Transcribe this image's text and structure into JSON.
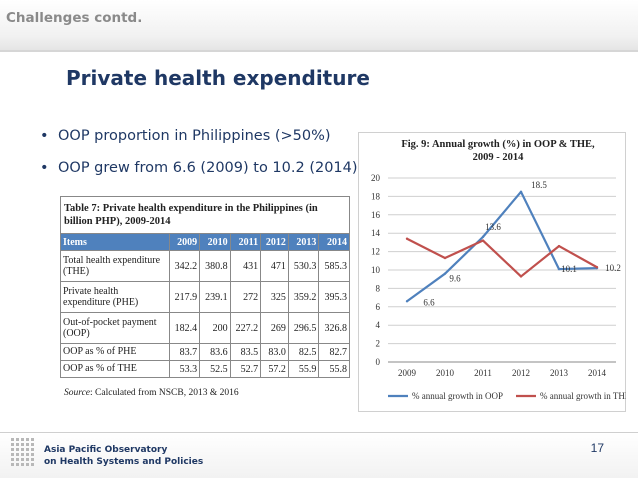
{
  "slide": {
    "section_header": "Challenges contd.",
    "title": "Private health expenditure",
    "bullets": [
      "OOP proportion in Philippines (>50%)",
      "OOP  grew from 6.6 (2009) to 10.2 (2014)"
    ],
    "page_number": "17",
    "footer_org_line1": "Asia Pacific Observatory",
    "footer_org_line2": "on Health Systems and Policies"
  },
  "table": {
    "caption": "Table 7: Private health expenditure in the Philippines (in billion PHP), 2009-2014",
    "header": [
      "Items",
      "2009",
      "2010",
      "2011",
      "2012",
      "2013",
      "2014"
    ],
    "rows": [
      {
        "label": "Total health expenditure (THE)",
        "values": [
          "342.2",
          "380.8",
          "431",
          "471",
          "530.3",
          "585.3"
        ]
      },
      {
        "label": "Private health expenditure (PHE)",
        "values": [
          "217.9",
          "239.1",
          "272",
          "325",
          "359.2",
          "395.3"
        ]
      },
      {
        "label": "Out-of-pocket payment (OOP)",
        "values": [
          "182.4",
          "200",
          "227.2",
          "269",
          "296.5",
          "326.8"
        ]
      },
      {
        "label": "OOP as % of PHE",
        "values": [
          "83.7",
          "83.6",
          "83.5",
          "83.0",
          "82.5",
          "82.7"
        ]
      },
      {
        "label": "OOP as % of THE",
        "values": [
          "53.3",
          "52.5",
          "52.7",
          "57.2",
          "55.9",
          "55.8"
        ]
      }
    ],
    "source_label": "Source",
    "source_text": ": Calculated from NSCB, 2013 & 2016"
  },
  "colors": {
    "title": "#1f3864",
    "header_fill": "#4f81bd",
    "series_oop": "#4f81bd",
    "series_the": "#c0504d"
  },
  "chart_data": {
    "type": "line",
    "title": "Fig. 9: Annual growth (%) in OOP & THE, 2009 - 2014",
    "categories": [
      "2009",
      "2010",
      "2011",
      "2012",
      "2013",
      "2014"
    ],
    "ylim": [
      0,
      20
    ],
    "yticks": [
      0,
      2,
      4,
      6,
      8,
      10,
      12,
      14,
      16,
      18,
      20
    ],
    "grid": true,
    "legend_position": "bottom",
    "series": [
      {
        "name": "% annual growth in OOP",
        "color": "#4f81bd",
        "values": [
          6.6,
          9.6,
          13.6,
          18.5,
          10.1,
          10.2
        ],
        "labels": [
          "6.6",
          "9.6",
          "13.6",
          "18.5",
          "10.1",
          "10.2"
        ]
      },
      {
        "name": "% annual growth in THE",
        "color": "#c0504d",
        "values": [
          13.4,
          11.3,
          13.2,
          9.3,
          12.6,
          10.3
        ],
        "labels": []
      }
    ]
  }
}
